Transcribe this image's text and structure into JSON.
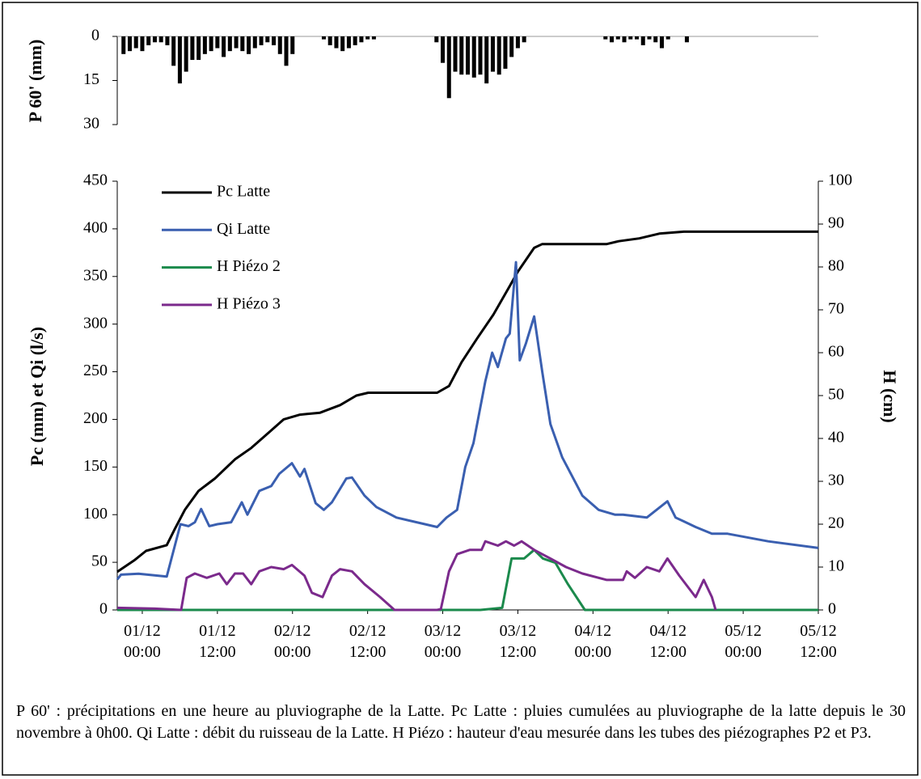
{
  "chart_data": [
    {
      "type": "bar",
      "ylabel": "P 60' (mm)",
      "color": "#000000",
      "inverted": true,
      "xlim": [
        -4,
        108
      ],
      "ylim": [
        0,
        30
      ],
      "yticks": [
        0,
        15,
        30
      ],
      "x": [
        -3,
        -2,
        -1,
        0,
        1,
        2,
        3,
        4,
        5,
        6,
        7,
        8,
        9,
        10,
        11,
        12,
        13,
        14,
        15,
        16,
        17,
        18,
        19,
        20,
        21,
        22,
        23,
        24,
        29,
        30,
        31,
        32,
        33,
        34,
        35,
        36,
        37,
        47,
        48,
        49,
        50,
        51,
        52,
        53,
        54,
        55,
        56,
        57,
        58,
        59,
        60,
        61,
        74,
        75,
        76,
        77,
        78,
        79,
        80,
        81,
        82,
        83,
        84,
        85,
        86,
        87
      ],
      "values": [
        6,
        5,
        4,
        5,
        3,
        2,
        2,
        3,
        10,
        16,
        12,
        8,
        8,
        6,
        5,
        4,
        7,
        5,
        4,
        5,
        6,
        4,
        3,
        2,
        3,
        6,
        10,
        6,
        1,
        3,
        4,
        5,
        4,
        3,
        2,
        1,
        1,
        2,
        9,
        21,
        12,
        13,
        13,
        14,
        13,
        16,
        12,
        13,
        11,
        7,
        4,
        2,
        1,
        2,
        1,
        2,
        1,
        1,
        3,
        1,
        2,
        4,
        1,
        0,
        0,
        2
      ]
    },
    {
      "type": "line",
      "ylabel": "Pc (mm) et Qi (l/s)",
      "y2label": "H (cm)",
      "xlim": [
        -4,
        108
      ],
      "xticks": [
        {
          "value": 0,
          "label": "01/12\n00:00"
        },
        {
          "value": 12,
          "label": "01/12\n12:00"
        },
        {
          "value": 24,
          "label": "02/12\n00:00"
        },
        {
          "value": 36,
          "label": "02/12\n12:00"
        },
        {
          "value": 48,
          "label": "03/12\n00:00"
        },
        {
          "value": 60,
          "label": "03/12\n12:00"
        },
        {
          "value": 72,
          "label": "04/12\n00:00"
        },
        {
          "value": 84,
          "label": "04/12\n12:00"
        },
        {
          "value": 96,
          "label": "05/12\n00:00"
        },
        {
          "value": 108,
          "label": "05/12\n12:00"
        }
      ],
      "ylim": [
        0,
        450
      ],
      "yticks": [
        0,
        50,
        100,
        150,
        200,
        250,
        300,
        350,
        400,
        450
      ],
      "y2lim": [
        0,
        100
      ],
      "y2ticks": [
        0,
        10,
        20,
        30,
        40,
        50,
        60,
        70,
        80,
        90,
        100
      ],
      "series": [
        {
          "name": "Pc Latte",
          "color": "#000000",
          "x": [
            -4,
            -1.3,
            0.6,
            3.9,
            5.2,
            6.8,
            9,
            11.6,
            14.8,
            17.4,
            20,
            22.6,
            25.2,
            28.4,
            31.6,
            34.2,
            36.1,
            47.1,
            49,
            51,
            53.5,
            56.1,
            58.7,
            60,
            62.6,
            63.9,
            74.2,
            76.1,
            79.4,
            82.6,
            86.5,
            108
          ],
          "values": [
            40,
            52,
            62,
            68,
            85,
            105,
            125,
            138,
            158,
            170,
            185,
            200,
            205,
            207,
            215,
            225,
            228,
            228,
            235,
            260,
            285,
            310,
            340,
            355,
            380,
            384,
            384,
            387,
            390,
            395,
            397,
            397
          ]
        },
        {
          "name": "Qi Latte",
          "color": "#3a5fb0",
          "x": [
            -4,
            -3.4,
            -0.6,
            3.9,
            6.1,
            7.4,
            8.4,
            9.4,
            10.7,
            12,
            14.2,
            15.9,
            16.8,
            18.7,
            20.6,
            21.9,
            23.9,
            25.2,
            25.9,
            27.7,
            29,
            30.3,
            32.6,
            33.5,
            35.5,
            37.4,
            40.6,
            47.1,
            48.6,
            50.3,
            51.6,
            52.9,
            54.8,
            55.9,
            56.8,
            58.1,
            58.7,
            59.7,
            60.3,
            61.3,
            62.6,
            63.9,
            65.2,
            67.1,
            70.3,
            72.9,
            75.5,
            76.8,
            80.6,
            83.9,
            85.2,
            86.5,
            88.4,
            91,
            93.5,
            100,
            108
          ],
          "values": [
            32,
            37,
            38,
            35,
            90,
            88,
            92,
            106,
            88,
            90,
            92,
            113,
            100,
            125,
            130,
            143,
            154,
            140,
            148,
            112,
            105,
            113,
            138,
            139,
            120,
            108,
            97,
            87,
            97,
            105,
            150,
            175,
            240,
            270,
            255,
            285,
            290,
            365,
            262,
            280,
            308,
            250,
            195,
            160,
            120,
            105,
            100,
            100,
            97,
            114,
            97,
            93,
            87,
            80,
            80,
            72,
            65
          ]
        },
        {
          "name": "H Piézo 2",
          "color": "#1b8a4c",
          "axis": "y2",
          "x": [
            -4,
            54,
            57.5,
            59,
            61,
            62.6,
            64,
            66,
            68,
            70.7,
            108
          ],
          "values": [
            0,
            0,
            0.5,
            12,
            12,
            14,
            12,
            11,
            6,
            0,
            0
          ]
        },
        {
          "name": "H Piézo 3",
          "color": "#7b2a8c",
          "axis": "y2",
          "x": [
            -4,
            2,
            6.2,
            7.1,
            8.4,
            10.3,
            12.3,
            13.5,
            14.8,
            16.1,
            17.4,
            18.7,
            20.6,
            22.6,
            23.9,
            25.9,
            27.1,
            28.8,
            30.3,
            31.6,
            33.5,
            35.5,
            38,
            40.3,
            47.1,
            47.7,
            49,
            50.3,
            52.3,
            54.2,
            54.8,
            56.8,
            58.1,
            59.4,
            60.6,
            62.6,
            65.2,
            67.7,
            70.3,
            74.2,
            76.8,
            77.4,
            78.7,
            80.6,
            82.6,
            83.9,
            85.8,
            88.4,
            89.7,
            91,
            91.6
          ],
          "values": [
            0.5,
            0.3,
            0,
            7.5,
            8.5,
            7.5,
            8.5,
            6,
            8.5,
            8.5,
            6,
            9,
            10,
            9.5,
            10.5,
            8,
            4,
            3,
            8,
            9.5,
            9,
            6,
            3,
            0,
            0,
            0.2,
            9,
            13,
            14,
            14,
            16,
            15,
            16,
            15,
            16,
            14,
            12,
            10,
            8.5,
            7,
            7,
            9,
            7.5,
            10,
            9,
            12,
            8,
            3,
            7,
            3,
            0
          ]
        }
      ]
    }
  ],
  "caption": "P 60' : précipitations en une heure au pluviographe de la Latte. Pc Latte : pluies cumulées au pluviographe de la latte depuis le 30 novembre à 0h00. Qi Latte : débit du ruisseau de la Latte. H Piézo : hauteur d'eau mesurée dans les tubes des piézographes P2 et P3."
}
